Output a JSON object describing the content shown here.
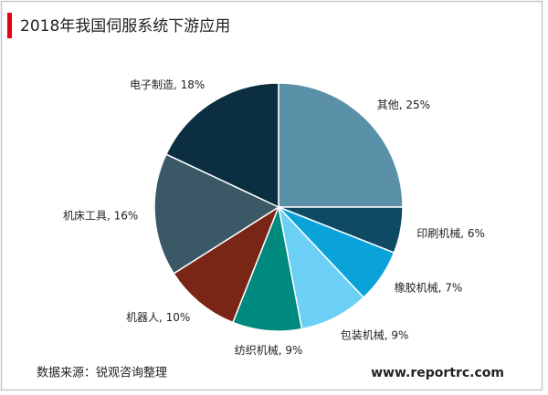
{
  "chart_data": {
    "type": "pie",
    "title": "2018年我国伺服系统下游应用",
    "values": [
      25,
      6,
      7,
      9,
      9,
      10,
      16,
      18
    ],
    "value_labels": [
      "其他, 25%",
      "印刷机械, 6%",
      "橡胶机械, 7%",
      "包装机械, 9%",
      "纺织机械, 9%",
      "机器人, 10%",
      "机床工具, 16%",
      "电子制造, 18%"
    ],
    "colors": [
      "#5b91a8",
      "#0e4a64",
      "#0aa3d9",
      "#6ccff5",
      "#00897d",
      "#7a2616",
      "#3b5866",
      "#0b2f40"
    ]
  },
  "footer": {
    "source": "数据来源：锐观咨询整理",
    "website": "www.reportrc.com"
  }
}
